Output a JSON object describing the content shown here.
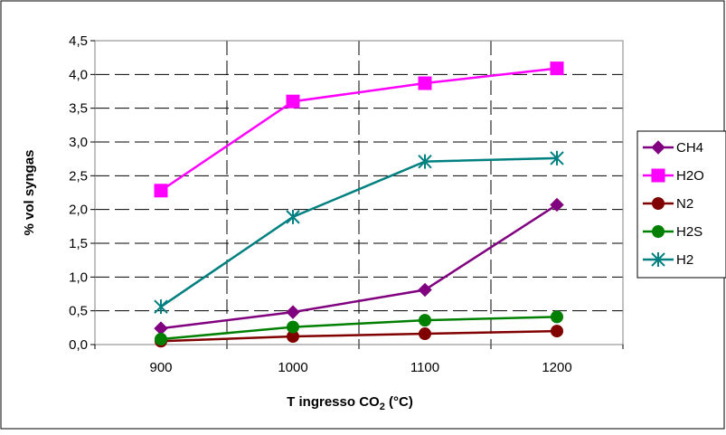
{
  "chart_data": {
    "type": "line",
    "xlabel": "T ingresso CO2 (°C)",
    "xlabel_main": "T ingresso CO",
    "xlabel_sub": "2",
    "xlabel_tail": " (°C)",
    "ylabel": "% vol syngas",
    "categories": [
      "900",
      "1000",
      "1100",
      "1200"
    ],
    "ylim": [
      0,
      4.5
    ],
    "yticks": [
      "0,0",
      "0,5",
      "1,0",
      "1,5",
      "2,0",
      "2,5",
      "3,0",
      "3,5",
      "4,0",
      "4,5"
    ],
    "grid": "dashed horizontal and vertical",
    "legend_position": "right",
    "series": [
      {
        "name": "CH4",
        "color": "#800080",
        "marker": "diamond",
        "values": [
          0.24,
          0.48,
          0.81,
          2.07
        ]
      },
      {
        "name": "H2O",
        "color": "#FF00FF",
        "marker": "square",
        "values": [
          2.28,
          3.6,
          3.87,
          4.09
        ]
      },
      {
        "name": "N2",
        "color": "#800000",
        "marker": "circle",
        "values": [
          0.05,
          0.12,
          0.16,
          0.2
        ]
      },
      {
        "name": "H2S",
        "color": "#008000",
        "marker": "circle",
        "values": [
          0.08,
          0.26,
          0.36,
          0.41
        ]
      },
      {
        "name": "H2",
        "color": "#008080",
        "marker": "asterisk",
        "values": [
          0.56,
          1.89,
          2.71,
          2.76
        ]
      }
    ]
  }
}
